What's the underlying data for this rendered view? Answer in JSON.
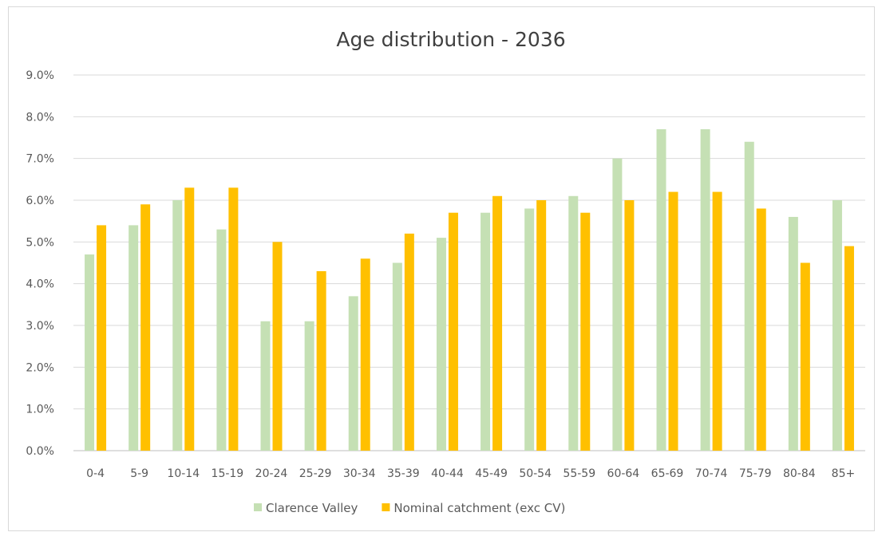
{
  "chart_data": {
    "type": "bar",
    "title": "Age distribution - 2036",
    "xlabel": "",
    "ylabel": "",
    "ylim": [
      0,
      9
    ],
    "ytick_step": 1,
    "ytick_format": "percent-1dp",
    "grid": true,
    "legend_position": "bottom",
    "categories": [
      "0-4",
      "5-9",
      "10-14",
      "15-19",
      "20-24",
      "25-29",
      "30-34",
      "35-39",
      "40-44",
      "45-49",
      "50-54",
      "55-59",
      "60-64",
      "65-69",
      "70-74",
      "75-79",
      "80-84",
      "85+"
    ],
    "series": [
      {
        "name": "Clarence Valley",
        "color": "#c5e0b4",
        "values": [
          4.7,
          5.4,
          6.0,
          5.3,
          3.1,
          3.1,
          3.7,
          4.5,
          5.1,
          5.7,
          5.8,
          6.1,
          7.0,
          7.7,
          7.7,
          7.4,
          5.6,
          6.0
        ]
      },
      {
        "name": "Nominal catchment (exc CV)",
        "color": "#ffc000",
        "values": [
          5.4,
          5.9,
          6.3,
          6.3,
          5.0,
          4.3,
          4.6,
          5.2,
          5.7,
          6.1,
          6.0,
          5.7,
          6.0,
          6.2,
          6.2,
          5.8,
          4.5,
          4.9
        ]
      }
    ]
  }
}
